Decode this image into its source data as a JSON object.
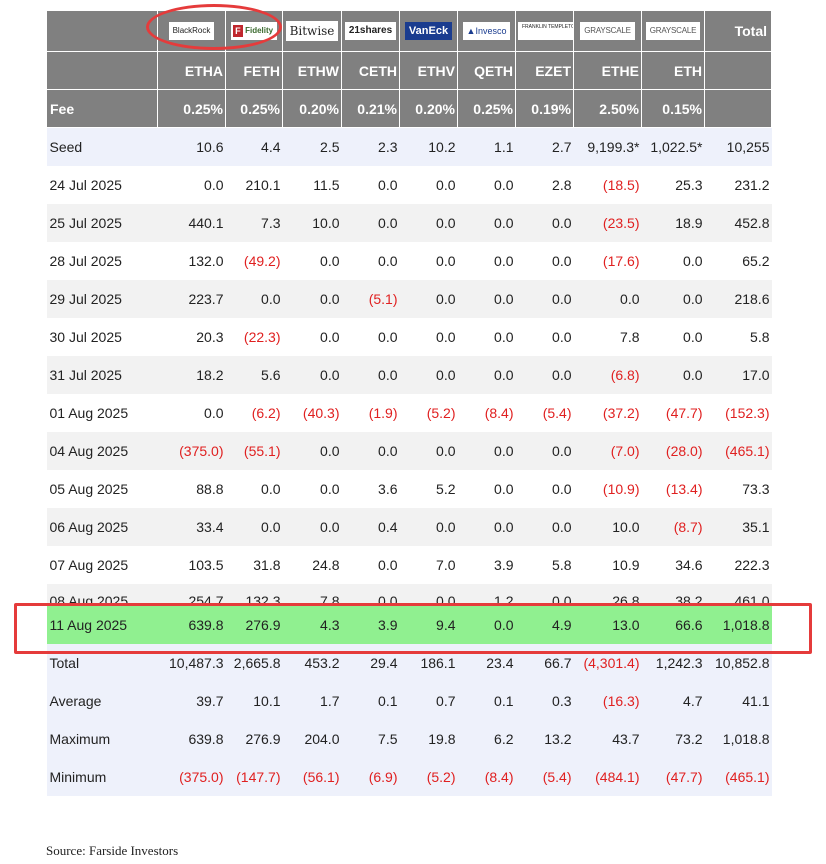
{
  "logos": [
    "BlackRock",
    "Fidelity",
    "Bitwise",
    "21shares",
    "VanEck",
    "Invesco",
    "FRANKLIN TEMPLETON",
    "GRAYSCALE",
    "GRAYSCALE"
  ],
  "total_label": "Total",
  "tickers": [
    "ETHA",
    "FETH",
    "ETHW",
    "CETH",
    "ETHV",
    "QETH",
    "EZET",
    "ETHE",
    "ETH"
  ],
  "fee_label": "Fee",
  "fees": [
    "0.25%",
    "0.25%",
    "0.20%",
    "0.21%",
    "0.20%",
    "0.25%",
    "0.19%",
    "2.50%",
    "0.15%"
  ],
  "rows": [
    {
      "date": "Seed",
      "values": [
        "10.6",
        "4.4",
        "2.5",
        "2.3",
        "10.2",
        "1.1",
        "2.7",
        "9,199.3*",
        "1,022.5*",
        "10,255"
      ]
    },
    {
      "date": "24 Jul 2025",
      "values": [
        "0.0",
        "210.1",
        "11.5",
        "0.0",
        "0.0",
        "0.0",
        "2.8",
        "(18.5)",
        "25.3",
        "231.2"
      ]
    },
    {
      "date": "25 Jul 2025",
      "values": [
        "440.1",
        "7.3",
        "10.0",
        "0.0",
        "0.0",
        "0.0",
        "0.0",
        "(23.5)",
        "18.9",
        "452.8"
      ]
    },
    {
      "date": "28 Jul 2025",
      "values": [
        "132.0",
        "(49.2)",
        "0.0",
        "0.0",
        "0.0",
        "0.0",
        "0.0",
        "(17.6)",
        "0.0",
        "65.2"
      ]
    },
    {
      "date": "29 Jul 2025",
      "values": [
        "223.7",
        "0.0",
        "0.0",
        "(5.1)",
        "0.0",
        "0.0",
        "0.0",
        "0.0",
        "0.0",
        "218.6"
      ]
    },
    {
      "date": "30 Jul 2025",
      "values": [
        "20.3",
        "(22.3)",
        "0.0",
        "0.0",
        "0.0",
        "0.0",
        "0.0",
        "7.8",
        "0.0",
        "5.8"
      ]
    },
    {
      "date": "31 Jul 2025",
      "values": [
        "18.2",
        "5.6",
        "0.0",
        "0.0",
        "0.0",
        "0.0",
        "0.0",
        "(6.8)",
        "0.0",
        "17.0"
      ]
    },
    {
      "date": "01 Aug 2025",
      "values": [
        "0.0",
        "(6.2)",
        "(40.3)",
        "(1.9)",
        "(5.2)",
        "(8.4)",
        "(5.4)",
        "(37.2)",
        "(47.7)",
        "(152.3)"
      ]
    },
    {
      "date": "04 Aug 2025",
      "values": [
        "(375.0)",
        "(55.1)",
        "0.0",
        "0.0",
        "0.0",
        "0.0",
        "0.0",
        "(7.0)",
        "(28.0)",
        "(465.1)"
      ]
    },
    {
      "date": "05 Aug 2025",
      "values": [
        "88.8",
        "0.0",
        "0.0",
        "3.6",
        "5.2",
        "0.0",
        "0.0",
        "(10.9)",
        "(13.4)",
        "73.3"
      ]
    },
    {
      "date": "06 Aug 2025",
      "values": [
        "33.4",
        "0.0",
        "0.0",
        "0.4",
        "0.0",
        "0.0",
        "0.0",
        "10.0",
        "(8.7)",
        "35.1"
      ]
    },
    {
      "date": "07 Aug 2025",
      "values": [
        "103.5",
        "31.8",
        "24.8",
        "0.0",
        "7.0",
        "3.9",
        "5.8",
        "10.9",
        "34.6",
        "222.3"
      ]
    },
    {
      "date": "08 Aug 2025",
      "values": [
        "254.7",
        "132.3",
        "7.8",
        "0.0",
        "0.0",
        "1.2",
        "0.0",
        "26.8",
        "38.2",
        "461.0"
      ]
    },
    {
      "date": "11 Aug 2025",
      "values": [
        "639.8",
        "276.9",
        "4.3",
        "3.9",
        "9.4",
        "0.0",
        "4.9",
        "13.0",
        "66.6",
        "1,018.8"
      ]
    }
  ],
  "summary": [
    {
      "date": "Total",
      "values": [
        "10,487.3",
        "2,665.8",
        "453.2",
        "29.4",
        "186.1",
        "23.4",
        "66.7",
        "(4,301.4)",
        "1,242.3",
        "10,852.8"
      ]
    },
    {
      "date": "Average",
      "values": [
        "39.7",
        "10.1",
        "1.7",
        "0.1",
        "0.7",
        "0.1",
        "0.3",
        "(16.3)",
        "4.7",
        "41.1"
      ]
    },
    {
      "date": "Maximum",
      "values": [
        "639.8",
        "276.9",
        "204.0",
        "7.5",
        "19.8",
        "6.2",
        "13.2",
        "43.7",
        "73.2",
        "1,018.8"
      ]
    },
    {
      "date": "Minimum",
      "values": [
        "(375.0)",
        "(147.7)",
        "(56.1)",
        "(6.9)",
        "(5.2)",
        "(8.4)",
        "(5.4)",
        "(484.1)",
        "(47.7)",
        "(465.1)"
      ]
    }
  ],
  "source": "Source: Farside Investors",
  "colors": {
    "header_bg": "#808080",
    "negative": "#e02020",
    "highlight_row": "#90f090",
    "annotation": "#e53b3b",
    "row_shade": "#eef1fb"
  }
}
